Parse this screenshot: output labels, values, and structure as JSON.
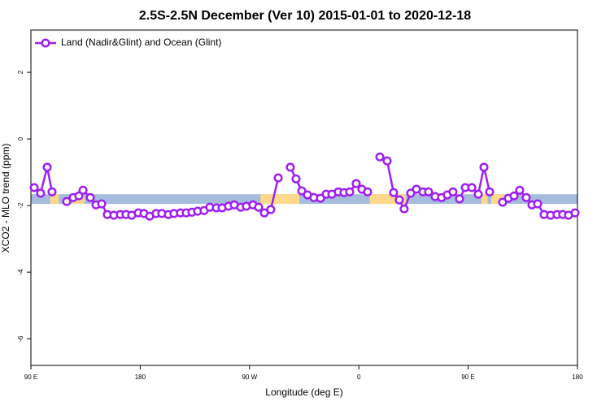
{
  "chart_data": {
    "type": "line",
    "title": "2.5S-2.5N December (Ver 10)   2015-01-01 to 2020-12-18",
    "xlabel": "Longitude (deg E)",
    "ylabel": "XCO2 - MLO trend (ppm)",
    "xlim": [
      90,
      540
    ],
    "ylim": [
      -6.8,
      3.27
    ],
    "xticks": [
      {
        "value": 90,
        "label": "90 E"
      },
      180,
      {
        "value": 270,
        "label": "90 W"
      },
      {
        "value": 360,
        "label": "0"
      },
      {
        "value": 450,
        "label": "90 E"
      },
      {
        "value": 540,
        "label": "180"
      }
    ],
    "yticks": [
      -6,
      -4,
      -2,
      0,
      2
    ],
    "legend": "upper left",
    "band": {
      "ylim": [
        -1.95,
        -1.66
      ],
      "color": "#a5bcdc",
      "highlight_color": "#ffd98a",
      "highlights": [
        [
          106,
          113
        ],
        [
          124,
          134
        ],
        [
          279,
          311
        ],
        [
          369,
          399
        ],
        [
          461,
          466
        ],
        [
          469,
          480
        ]
      ]
    },
    "series": [
      {
        "name": "Land (Nadir&Glint) and Ocean (Glint)",
        "color": "#a020f0",
        "x": [
          92.7,
          98,
          103.4,
          107.4,
          null,
          119.5,
          124.8,
          129.5,
          132.9,
          138.9,
          143.6,
          148.3,
          152.9,
          158.3,
          163.7,
          168.3,
          173,
          178.4,
          183.1,
          187.8,
          193.1,
          197.8,
          203.2,
          207.8,
          213.2,
          217.9,
          222.6,
          227.3,
          232.6,
          237.3,
          242.7,
          247.4,
          252.7,
          257.4,
          262.8,
          267.4,
          272.8,
          277.5,
          282.2,
          287.5,
          293.6,
          null,
          303.6,
          308.3,
          313,
          317.7,
          323,
          328.4,
          333.1,
          337.8,
          343.1,
          347.8,
          352.5,
          357.8,
          362.5,
          367.2,
          null,
          377.3,
          383.3,
          388.6,
          393.3,
          397.3,
          402.7,
          407.4,
          412.8,
          417.4,
          422.8,
          428.1,
          432.8,
          437.5,
          442.9,
          447.6,
          453,
          458.3,
          463,
          467.7,
          null,
          478.4,
          483.1,
          487.8,
          492.4,
          497.8,
          502.5,
          507.2,
          512.5,
          517.9,
          523.2,
          527.9,
          532.6,
          538
        ],
        "values": [
          -1.46,
          -1.63,
          -0.85,
          -1.59,
          null,
          -1.88,
          -1.76,
          -1.71,
          -1.54,
          -1.76,
          -1.98,
          -1.95,
          -2.27,
          -2.29,
          -2.27,
          -2.27,
          -2.29,
          -2.22,
          -2.24,
          -2.32,
          -2.24,
          -2.24,
          -2.27,
          -2.24,
          -2.22,
          -2.22,
          -2.2,
          -2.17,
          -2.15,
          -2.05,
          -2.07,
          -2.07,
          -2.02,
          -1.98,
          -2.05,
          -2.02,
          -1.98,
          -2.05,
          -2.22,
          -2.12,
          -1.17,
          null,
          -0.85,
          -1.2,
          -1.56,
          -1.68,
          -1.76,
          -1.78,
          -1.66,
          -1.66,
          -1.59,
          -1.61,
          -1.59,
          -1.34,
          -1.51,
          -1.59,
          null,
          -0.54,
          -0.66,
          -1.61,
          -1.83,
          -2.1,
          -1.63,
          -1.51,
          -1.59,
          -1.59,
          -1.73,
          -1.76,
          -1.68,
          -1.59,
          -1.8,
          -1.46,
          -1.46,
          -1.66,
          -0.85,
          -1.59,
          null,
          -1.9,
          -1.78,
          -1.71,
          -1.54,
          -1.76,
          -1.98,
          -1.95,
          -2.27,
          -2.29,
          -2.27,
          -2.27,
          -2.29,
          -2.22
        ]
      }
    ]
  }
}
